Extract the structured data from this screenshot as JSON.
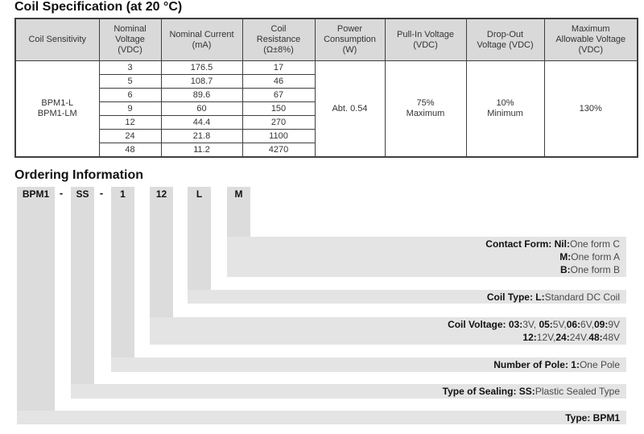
{
  "colors": {
    "table_header_bg": "#d9d9d9",
    "ordering_bar_bg": "#dcdcdc",
    "ordering_band_bg": "#e4e4e4",
    "border": "#3f3f3f"
  },
  "sections": {
    "coil_spec_title": "Coil Specification (at 20 °C)",
    "ordering_title": "Ordering Information"
  },
  "coil_table": {
    "headers": [
      "Coil Sensitivity",
      "Nominal\nVoltage\n(VDC)",
      "Nominal Current\n(mA)",
      "Coil\nResistance\n(Ω±8%)",
      "Power\nConsumption\n(W)",
      "Pull-In Voltage\n(VDC)",
      "Drop-Out\nVoltage (VDC)",
      "Maximum\nAllowable Voltage\n(VDC)"
    ],
    "sensitivity": "BPM1-L\nBPM1-LM",
    "rows": [
      {
        "voltage": "3",
        "current": "176.5",
        "resistance": "17"
      },
      {
        "voltage": "5",
        "current": "108.7",
        "resistance": "46"
      },
      {
        "voltage": "6",
        "current": "89.6",
        "resistance": "67"
      },
      {
        "voltage": "9",
        "current": "60",
        "resistance": "150"
      },
      {
        "voltage": "12",
        "current": "44.4",
        "resistance": "270"
      },
      {
        "voltage": "24",
        "current": "21.8",
        "resistance": "1100"
      },
      {
        "voltage": "48",
        "current": "11.2",
        "resistance": "4270"
      }
    ],
    "power_consumption": "Abt. 0.54",
    "pull_in_voltage": "75%\nMaximum",
    "drop_out_voltage": "10%\nMinimum",
    "max_allowable_voltage": "130%"
  },
  "ordering": {
    "code_labels": [
      "BPM1",
      "SS",
      "1",
      "12",
      "L",
      "M"
    ],
    "separators": [
      "-",
      "-"
    ],
    "bands": [
      {
        "name": "contact-form",
        "lines": [
          [
            {
              "t": "Contact Form: ",
              "b": true
            },
            {
              "t": "Nil:",
              "b": true
            },
            {
              "t": "One form C",
              "b": false
            }
          ],
          [
            {
              "t": "M:",
              "b": true
            },
            {
              "t": "One form A",
              "b": false
            }
          ],
          [
            {
              "t": "B:",
              "b": true
            },
            {
              "t": "One form B",
              "b": false
            }
          ]
        ]
      },
      {
        "name": "coil-type",
        "lines": [
          [
            {
              "t": "Coil Type: ",
              "b": true
            },
            {
              "t": "L:",
              "b": true
            },
            {
              "t": "Standard DC Coil",
              "b": false
            }
          ]
        ]
      },
      {
        "name": "coil-voltage",
        "lines": [
          [
            {
              "t": "Coil Voltage: ",
              "b": true
            },
            {
              "t": "03:",
              "b": true
            },
            {
              "t": "3V, ",
              "b": false
            },
            {
              "t": "05:",
              "b": true
            },
            {
              "t": "5V,",
              "b": false
            },
            {
              "t": "06:",
              "b": true
            },
            {
              "t": "6V,",
              "b": false
            },
            {
              "t": "09:",
              "b": true
            },
            {
              "t": "9V",
              "b": false
            }
          ],
          [
            {
              "t": "12:",
              "b": true
            },
            {
              "t": "12V,",
              "b": false
            },
            {
              "t": "24:",
              "b": true
            },
            {
              "t": "24V.",
              "b": false
            },
            {
              "t": "48:",
              "b": true
            },
            {
              "t": "48V",
              "b": false
            }
          ]
        ]
      },
      {
        "name": "number-of-pole",
        "lines": [
          [
            {
              "t": "Number of Pole: ",
              "b": true
            },
            {
              "t": "1:",
              "b": true
            },
            {
              "t": "One Pole",
              "b": false
            }
          ]
        ]
      },
      {
        "name": "type-of-sealing",
        "lines": [
          [
            {
              "t": "Type of Sealing: ",
              "b": true
            },
            {
              "t": "SS:",
              "b": true
            },
            {
              "t": "Plastic Sealed Type",
              "b": false
            }
          ]
        ]
      },
      {
        "name": "type",
        "lines": [
          [
            {
              "t": "Type: ",
              "b": true
            },
            {
              "t": "BPM1",
              "b": true
            }
          ]
        ]
      }
    ]
  }
}
